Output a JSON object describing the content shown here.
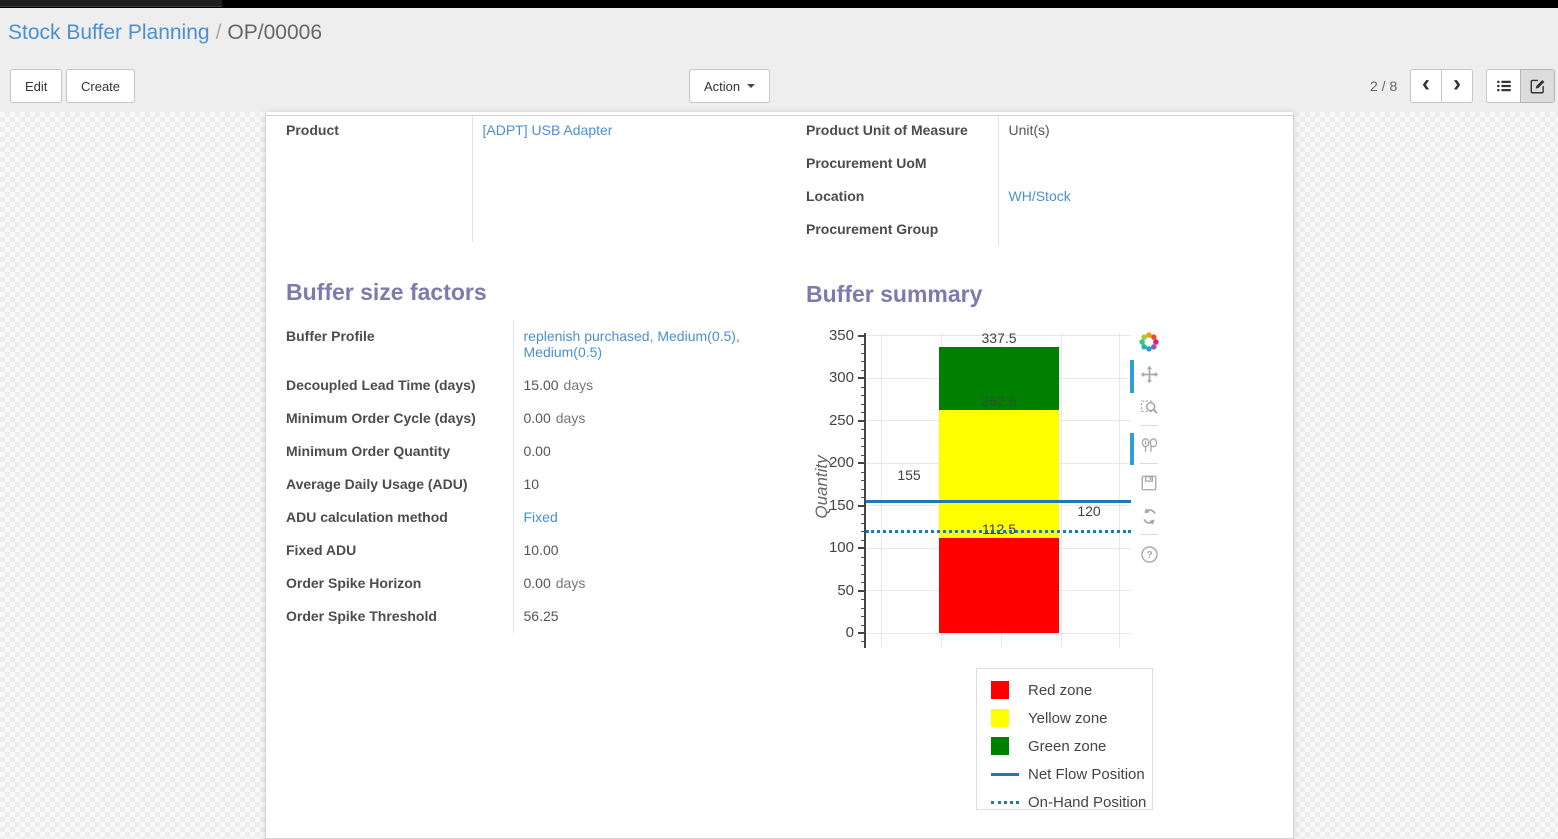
{
  "breadcrumb": {
    "parent": "Stock Buffer Planning",
    "separator": "/",
    "current": "OP/00006"
  },
  "toolbar": {
    "edit_label": "Edit",
    "create_label": "Create",
    "action_label": "Action",
    "pager": "2 / 8",
    "prev_icon": "‹",
    "next_icon": "›"
  },
  "form": {
    "left_fields": [
      {
        "label": "Product",
        "value": "[ADPT] USB Adapter"
      }
    ],
    "right_fields": [
      {
        "label": "Product Unit of Measure",
        "value": "Unit(s)"
      },
      {
        "label": "Procurement UoM",
        "value": ""
      },
      {
        "label": "Location",
        "value": "WH/Stock"
      },
      {
        "label": "Procurement Group",
        "value": ""
      }
    ],
    "buffer_factors": {
      "title": "Buffer size factors",
      "fields": [
        {
          "label": "Buffer Profile",
          "value": "replenish purchased, Medium(0.5), Medium(0.5)"
        },
        {
          "label": "Decoupled Lead Time (days)",
          "value": "15.00",
          "unit": "days"
        },
        {
          "label": "Minimum Order Cycle (days)",
          "value": "0.00",
          "unit": "days"
        },
        {
          "label": "Minimum Order Quantity",
          "value": "0.00"
        },
        {
          "label": "Average Daily Usage (ADU)",
          "value": "10"
        },
        {
          "label": "ADU calculation method",
          "value": "Fixed"
        },
        {
          "label": "Fixed ADU",
          "value": "10.00"
        },
        {
          "label": "Order Spike Horizon",
          "value": "0.00",
          "unit": "days"
        },
        {
          "label": "Order Spike Threshold",
          "value": "56.25"
        }
      ]
    },
    "buffer_summary_title": "Buffer summary"
  },
  "chart_data": {
    "type": "bar",
    "title": "",
    "xlabel": "",
    "ylabel": "Quantity",
    "ylim": [
      0,
      350
    ],
    "ytick_step": 50,
    "grid": true,
    "legend_position": "below-right",
    "zones": [
      {
        "name": "Red zone",
        "from": 0,
        "to": 112.5,
        "label": "112.5",
        "color": "#ff0000"
      },
      {
        "name": "Yellow zone",
        "from": 112.5,
        "to": 262.5,
        "label": "262.5",
        "color": "#ffff00"
      },
      {
        "name": "Green zone",
        "from": 262.5,
        "to": 337.5,
        "label": "337.5",
        "color": "#008000"
      }
    ],
    "lines": [
      {
        "name": "Net Flow Position",
        "value": 155,
        "label": "155",
        "style": "solid",
        "color": "#1f77b4"
      },
      {
        "name": "On-Hand Position",
        "value": 120,
        "label": "120",
        "style": "dotted",
        "color": "#1f77b4"
      }
    ],
    "legend": [
      "Red zone",
      "Yellow zone",
      "Green zone",
      "Net Flow Position",
      "On-Hand Position"
    ],
    "modebar_icons": [
      "plotly-logo-icon",
      "pan-icon",
      "box-zoom-icon",
      "hover-compare-icon",
      "save-icon",
      "reset-axes-icon",
      "help-icon"
    ]
  }
}
